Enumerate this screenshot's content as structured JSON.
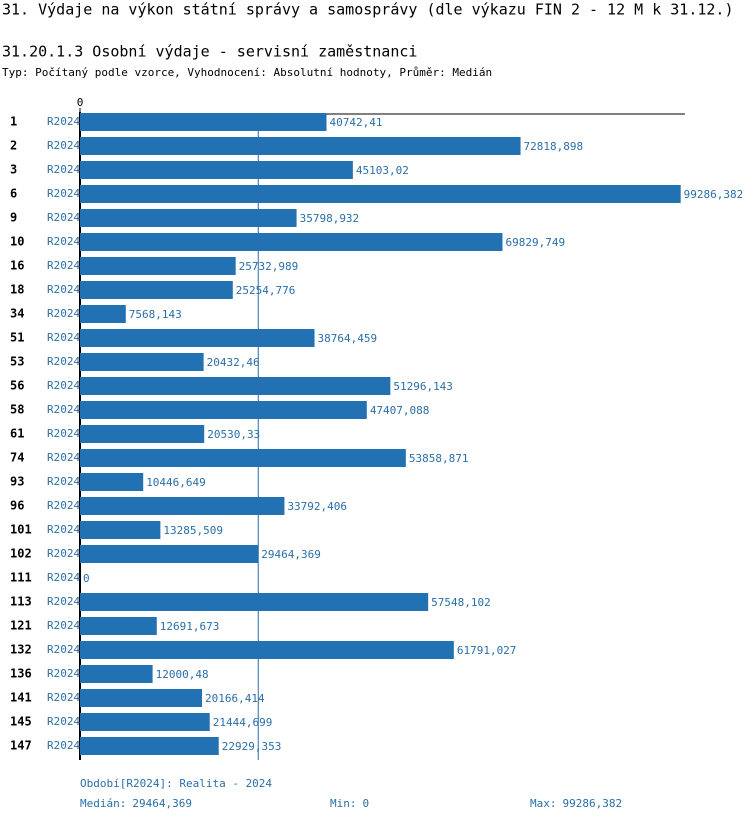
{
  "chart_data": {
    "type": "bar",
    "title": "31. Výdaje na výkon státní správy a samosprávy (dle výkazu FIN 2 - 12 M k 31.12.)",
    "subtitle": "31.20.1.3 Osobní výdaje - servisní zaměstnanci",
    "description": "Typ: Počítaný podle vzorce, Vyhodnocení: Absolutní hodnoty, Průměr: Medián",
    "categories": [
      "1",
      "2",
      "3",
      "6",
      "9",
      "10",
      "16",
      "18",
      "34",
      "51",
      "53",
      "56",
      "58",
      "61",
      "74",
      "93",
      "96",
      "101",
      "102",
      "111",
      "113",
      "121",
      "132",
      "136",
      "141",
      "145",
      "147"
    ],
    "series": [
      {
        "name": "R2024",
        "color": "#2271b3",
        "values": [
          40742.41,
          72818.898,
          45103.02,
          99286.382,
          35798.932,
          69829.749,
          25732.989,
          25254.776,
          7568.143,
          38764.459,
          20432.46,
          51296.143,
          47407.088,
          20530.33,
          53858.871,
          10446.649,
          33792.406,
          13285.509,
          29464.369,
          0,
          57548.102,
          12691.673,
          61791.027,
          12000.48,
          20166.414,
          21444.699,
          22929.353
        ],
        "value_labels": [
          "40742,41",
          "72818,898",
          "45103,02",
          "99286,382",
          "35798,932",
          "69829,749",
          "25732,989",
          "25254,776",
          "7568,143",
          "38764,459",
          "20432,46",
          "51296,143",
          "47407,088",
          "20530,33",
          "53858,871",
          "10446,649",
          "33792,406",
          "13285,509",
          "29464,369",
          "0",
          "57548,102",
          "12691,673",
          "61791,027",
          "12000,48",
          "20166,414",
          "21444,699",
          "22929,353"
        ]
      }
    ],
    "xlim": [
      0,
      100000
    ],
    "xticks": [
      0
    ],
    "period_note": "Období[R2024]: Realita - 2024",
    "stats": [
      {
        "name": "Medián:",
        "value": 29464.369,
        "label": "29464,369"
      },
      {
        "name": "Min:",
        "value": 0,
        "label": "0"
      },
      {
        "name": "Max:",
        "value": 99286.382,
        "label": "99286,382"
      }
    ]
  }
}
